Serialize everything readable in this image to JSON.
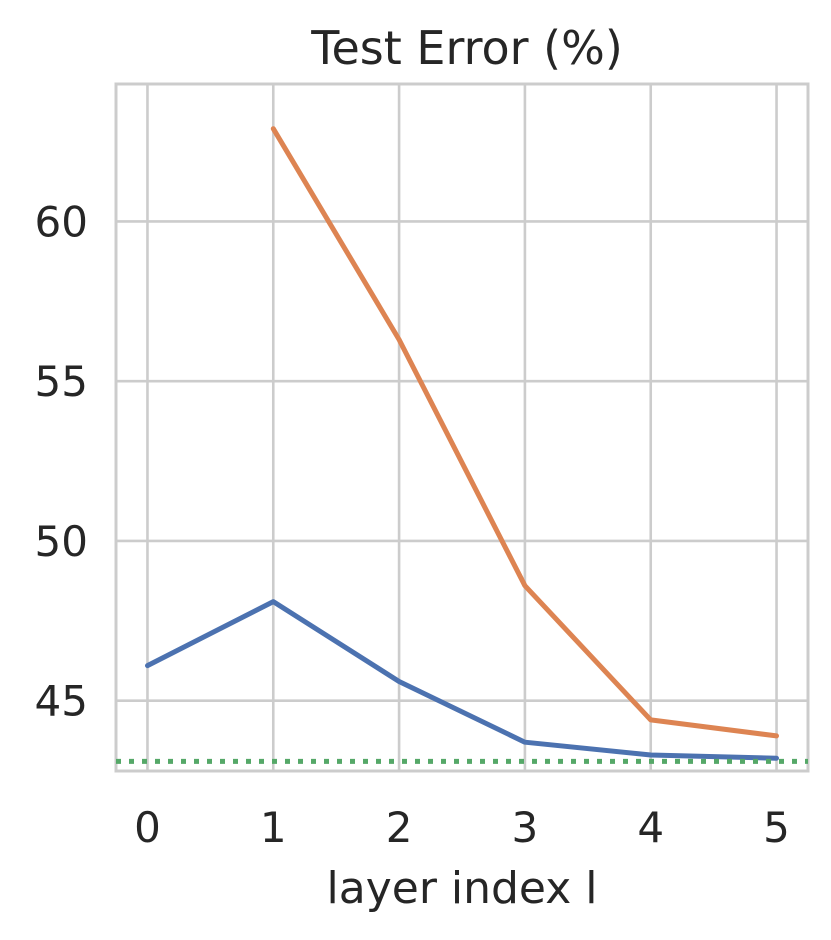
{
  "chart_data": {
    "type": "line",
    "title": "Test Error (%)",
    "xlabel": "layer index l",
    "ylabel": "",
    "x": [
      0,
      1,
      2,
      3,
      4,
      5
    ],
    "xticks": [
      "0",
      "1",
      "2",
      "3",
      "4",
      "5"
    ],
    "yticks": [
      "45",
      "50",
      "55",
      "60"
    ],
    "xlim": [
      -0.25,
      5.25
    ],
    "ylim": [
      42.8,
      64.3
    ],
    "grid": true,
    "legend": "none",
    "series": [
      {
        "values": [
          46.1,
          48.1,
          45.6,
          43.7,
          43.3,
          43.2
        ],
        "color": "#4c72b0",
        "style": "solid"
      },
      {
        "values": [
          null,
          62.9,
          56.3,
          48.6,
          44.4,
          43.9
        ],
        "color": "#dd8452",
        "style": "solid"
      },
      {
        "values": [
          43.1,
          43.1,
          43.1,
          43.1,
          43.1,
          43.1
        ],
        "color": "#55a868",
        "style": "dotted"
      }
    ]
  }
}
